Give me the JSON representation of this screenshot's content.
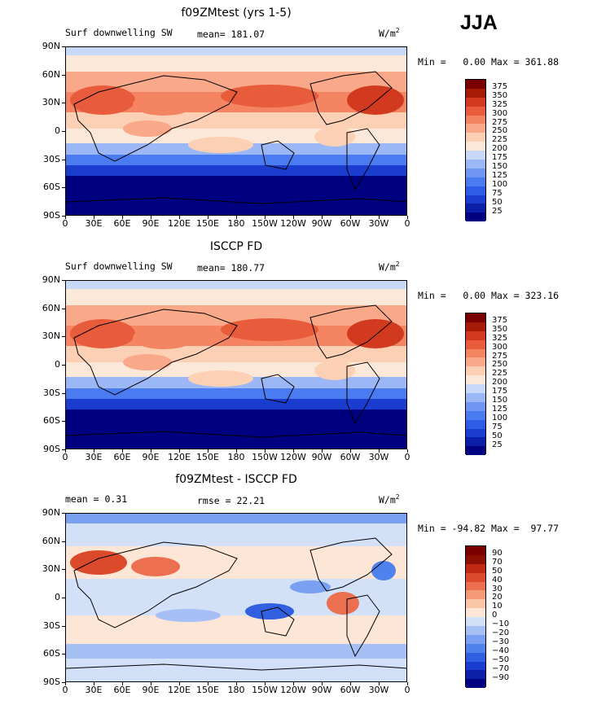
{
  "season": "JJA",
  "panels": [
    {
      "title": "f09ZMtest (yrs 1-5)",
      "left_label": "Surf downwelling SW",
      "center_label": "mean= 181.07",
      "units": "W/m",
      "units_sup": "2",
      "minmax": "Min =   0.00 Max = 361.88",
      "cbar_labels": [
        "375",
        "350",
        "325",
        "300",
        "275",
        "250",
        "225",
        "200",
        "175",
        "150",
        "125",
        "100",
        "75",
        "50",
        "25"
      ],
      "kind": "abs"
    },
    {
      "title": "ISCCP FD",
      "left_label": "Surf downwelling SW",
      "center_label": "mean= 180.77",
      "units": "W/m",
      "units_sup": "2",
      "minmax": "Min =   0.00 Max = 323.16",
      "cbar_labels": [
        "375",
        "350",
        "325",
        "300",
        "275",
        "250",
        "225",
        "200",
        "175",
        "150",
        "125",
        "100",
        "75",
        "50",
        "25"
      ],
      "kind": "abs"
    },
    {
      "title": "f09ZMtest - ISCCP FD",
      "left_label": "mean =   0.31",
      "center_label": "rmse =  22.21",
      "units": "W/m",
      "units_sup": "2",
      "minmax": "Min = -94.82 Max =  97.77",
      "cbar_labels": [
        "90",
        "70",
        "50",
        "40",
        "30",
        "20",
        "10",
        "0",
        "−10",
        "−20",
        "−30",
        "−40",
        "−50",
        "−70",
        "−90"
      ],
      "kind": "diff"
    }
  ],
  "lat_labels": [
    "90N",
    "60N",
    "30N",
    "0",
    "30S",
    "60S",
    "90S"
  ],
  "lon_labels": [
    "0",
    "30E",
    "60E",
    "90E",
    "120E",
    "150E",
    "180",
    "150W",
    "120W",
    "90W",
    "60W",
    "30W",
    "0"
  ],
  "colors": {
    "abs": [
      "#000080",
      "#0a1ea8",
      "#1a3ccf",
      "#2e5ce6",
      "#4a7bf0",
      "#6f97f2",
      "#9cb7f5",
      "#c8d8f7",
      "#fbe8d8",
      "#fcd0b4",
      "#f9a989",
      "#f48462",
      "#e85c3c",
      "#d23a20",
      "#a61a08",
      "#7a0000"
    ],
    "diff": [
      "#000080",
      "#0a1ea8",
      "#1a3ccf",
      "#3060e0",
      "#5082ee",
      "#7aa0f2",
      "#a6c0f5",
      "#d2e0f8",
      "#fde6d5",
      "#fbc6a8",
      "#f59a78",
      "#ec7050",
      "#dc4a2c",
      "#c02a14",
      "#8e1004",
      "#7a0000"
    ]
  }
}
